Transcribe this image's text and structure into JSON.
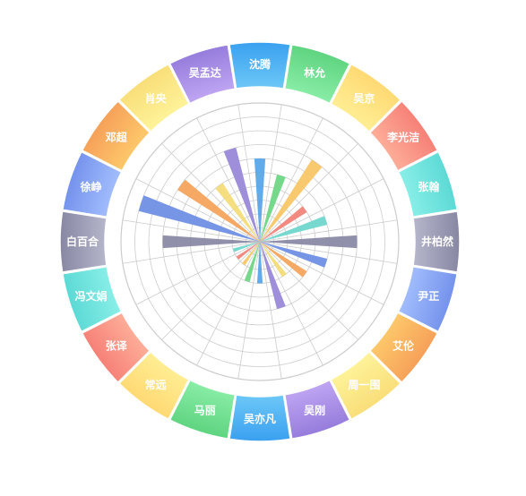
{
  "chart_data": {
    "type": "polar-bar",
    "title": "",
    "grid": true,
    "radial_max": 10,
    "rings": 10,
    "spokes": 20,
    "categories": [
      "沈腾",
      "林允",
      "吴京",
      "李光洁",
      "张翰",
      "井柏然",
      "尹正",
      "艾伦",
      "周一围",
      "吴刚",
      "吴亦凡",
      "马丽",
      "常远",
      "张译",
      "冯文娟",
      "白百合",
      "徐峥",
      "邓超",
      "肖央",
      "吴孟达"
    ],
    "values": [
      6,
      5,
      7,
      4,
      5,
      7,
      5,
      4,
      3,
      5,
      3,
      3,
      2,
      2,
      2,
      7,
      9,
      7,
      5,
      7
    ],
    "bar_colors": [
      "#5aa7ea",
      "#6ed685",
      "#f8c666",
      "#f1847a",
      "#6fd6cc",
      "#8a8aa6",
      "#6f8fe4",
      "#f6a45c",
      "#f3dc78",
      "#9a88d8",
      "#5aa7ea",
      "#6ed685",
      "#f8c666",
      "#f1847a",
      "#6fd6cc",
      "#8a8aa6",
      "#6f8fe4",
      "#f6a45c",
      "#f3dc78",
      "#9a88d8"
    ],
    "ring_colors": [
      [
        "#6dc8f7",
        "#3aa0f0"
      ],
      [
        "#8ef0ab",
        "#58d07a"
      ],
      [
        "#fff29a",
        "#ffd36a"
      ],
      [
        "#ffb7a0",
        "#f4736d"
      ],
      [
        "#8ff1ea",
        "#55d6d2"
      ],
      [
        "#b6b6cc",
        "#8787a3"
      ],
      [
        "#a8c3ff",
        "#6d8bea"
      ],
      [
        "#ffd06e",
        "#f49554"
      ],
      [
        "#fff7a0",
        "#f7d86f"
      ],
      [
        "#c4aaf5",
        "#8f76d8"
      ],
      [
        "#6dc8f7",
        "#3aa0f0"
      ],
      [
        "#8ef0ab",
        "#58d07a"
      ],
      [
        "#fff29a",
        "#ffd36a"
      ],
      [
        "#ffb7a0",
        "#f4736d"
      ],
      [
        "#8ff1ea",
        "#55d6d2"
      ],
      [
        "#b6b6cc",
        "#8787a3"
      ],
      [
        "#a8c3ff",
        "#6d8bea"
      ],
      [
        "#ffd06e",
        "#f49554"
      ],
      [
        "#fff7a0",
        "#f7d86f"
      ],
      [
        "#c4aaf5",
        "#8f76d8"
      ]
    ],
    "grid_color": "#cccccc"
  }
}
